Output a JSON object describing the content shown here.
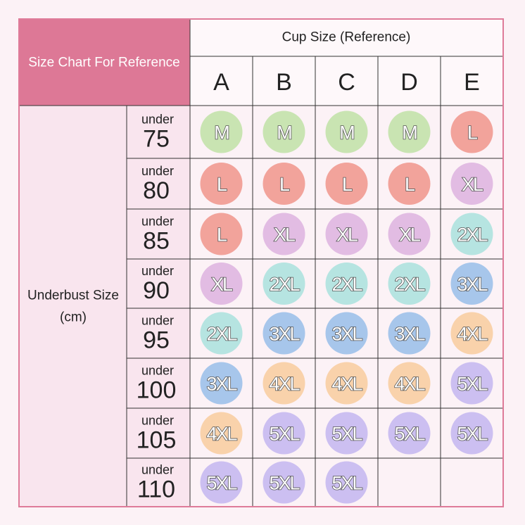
{
  "title": "Size Chart For Reference",
  "column_header": "Cup Size (Reference)",
  "row_header": [
    "Underbust Size",
    "(cm)"
  ],
  "columns": [
    "A",
    "B",
    "C",
    "D",
    "E"
  ],
  "rows": [
    {
      "prefix": "under",
      "value": 75,
      "cells": [
        "M",
        "M",
        "M",
        "M",
        "L"
      ]
    },
    {
      "prefix": "under",
      "value": 80,
      "cells": [
        "L",
        "L",
        "L",
        "L",
        "XL"
      ]
    },
    {
      "prefix": "under",
      "value": 85,
      "cells": [
        "L",
        "XL",
        "XL",
        "XL",
        "2XL"
      ]
    },
    {
      "prefix": "under",
      "value": 90,
      "cells": [
        "XL",
        "2XL",
        "2XL",
        "2XL",
        "3XL"
      ]
    },
    {
      "prefix": "under",
      "value": 95,
      "cells": [
        "2XL",
        "3XL",
        "3XL",
        "3XL",
        "4XL"
      ]
    },
    {
      "prefix": "under",
      "value": 100,
      "cells": [
        "3XL",
        "4XL",
        "4XL",
        "4XL",
        "5XL"
      ]
    },
    {
      "prefix": "under",
      "value": 105,
      "cells": [
        "4XL",
        "5XL",
        "5XL",
        "5XL",
        "5XL"
      ]
    },
    {
      "prefix": "under",
      "value": 110,
      "cells": [
        "5XL",
        "5XL",
        "5XL",
        null,
        null
      ]
    }
  ],
  "size_colors": {
    "M": "#c9e4b2",
    "L": "#f2a39b",
    "XL": "#e2bce3",
    "2XL": "#b6e4e1",
    "3XL": "#a7c6eb",
    "4XL": "#f9d2ab",
    "5XL": "#ccbff1"
  }
}
